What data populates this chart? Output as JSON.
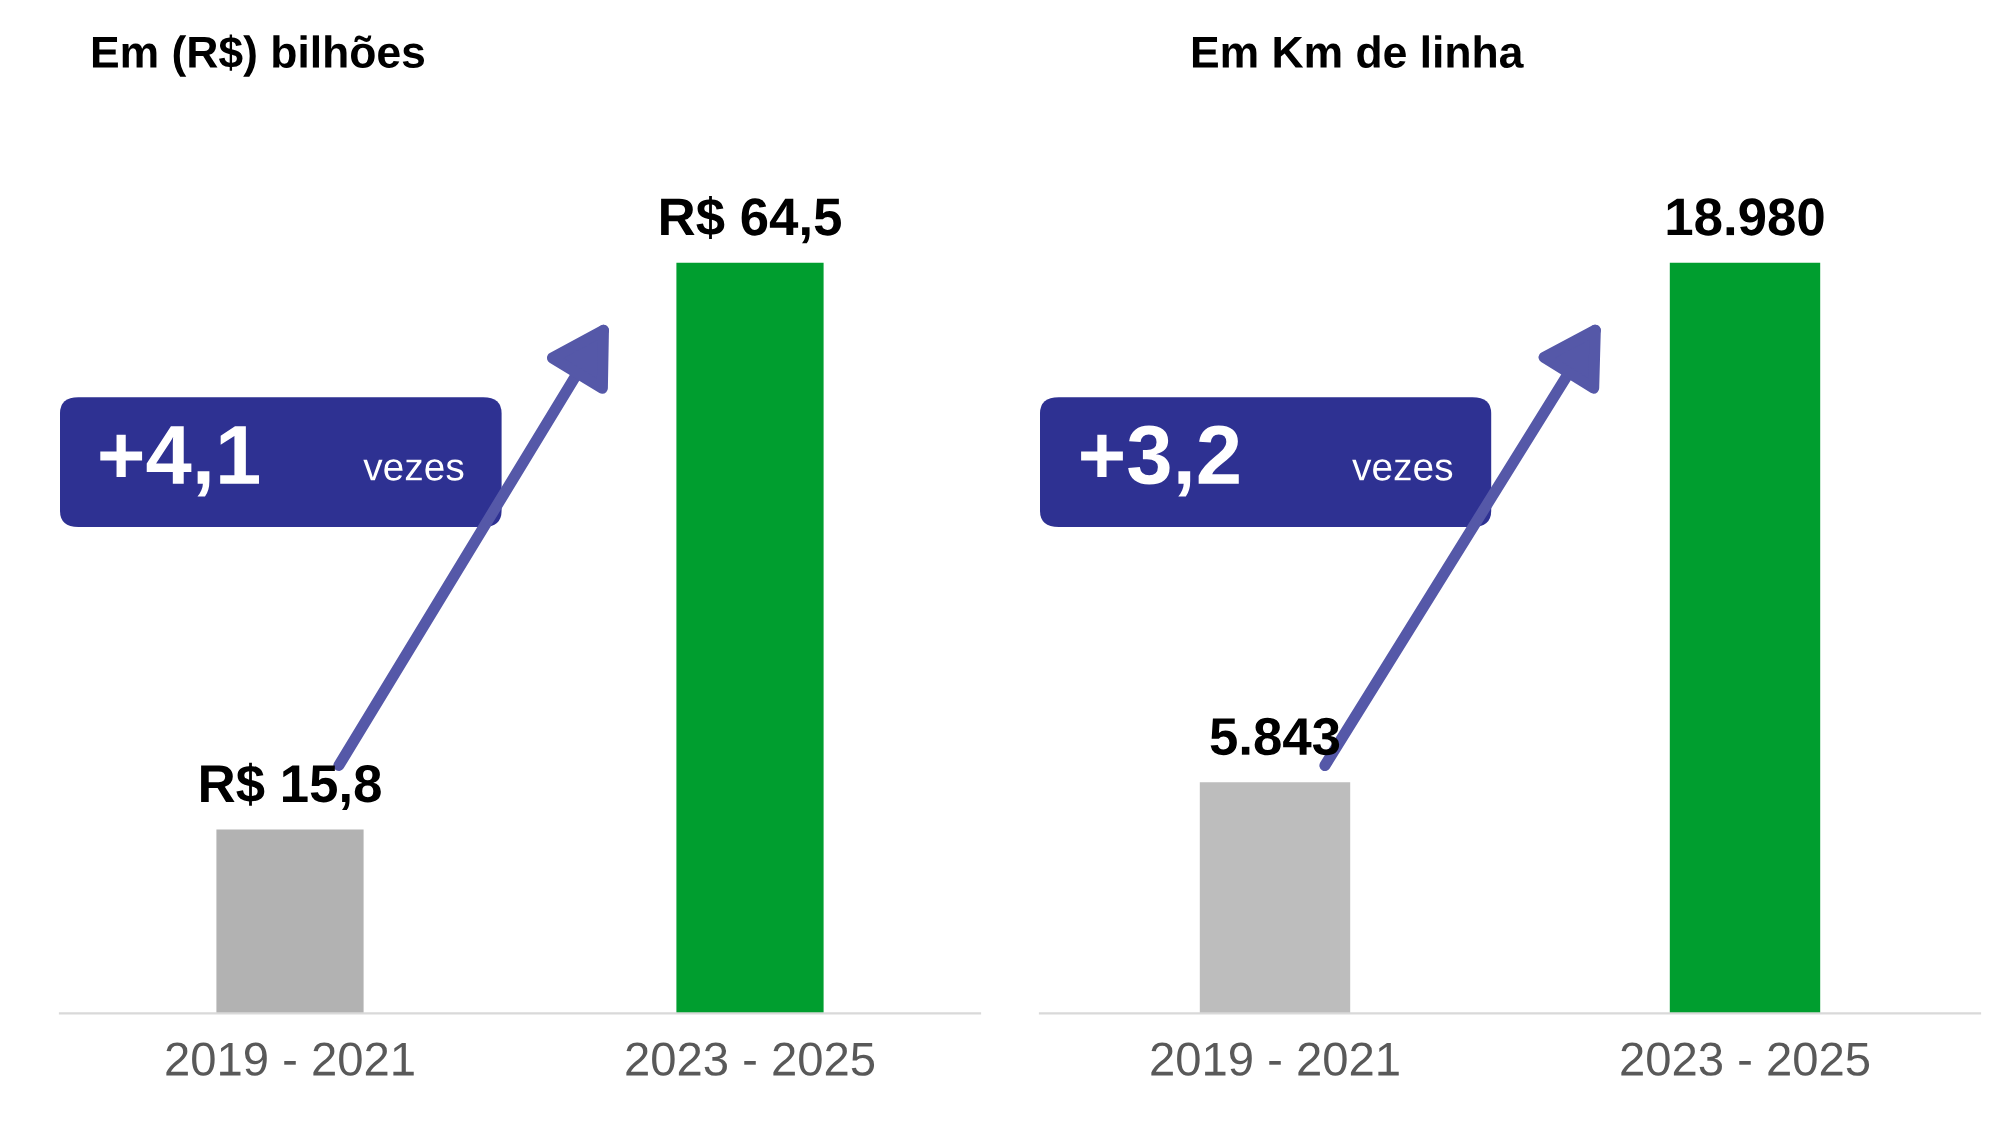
{
  "chart_data": [
    {
      "type": "bar",
      "title": "Em (R$) bilhões",
      "categories": [
        "2019 - 2021",
        "2023 - 2025"
      ],
      "values": [
        15.8,
        64.5
      ],
      "colors": [
        "#b2b2b2",
        "#009e2f"
      ],
      "value_labels": [
        "R$ 15,8",
        "R$ 64,5"
      ],
      "annotations": [
        "+4,1",
        "vezes"
      ]
    },
    {
      "type": "bar",
      "title": "Em Km de linha",
      "categories": [
        "2019 - 2021",
        "2023 - 2025"
      ],
      "values": [
        5843,
        18980
      ],
      "colors": [
        "#bdbdbd",
        "#009e2f"
      ],
      "value_labels": [
        "5.843",
        "18.980"
      ],
      "annotations": [
        "+3,2",
        "vezes"
      ]
    }
  ]
}
